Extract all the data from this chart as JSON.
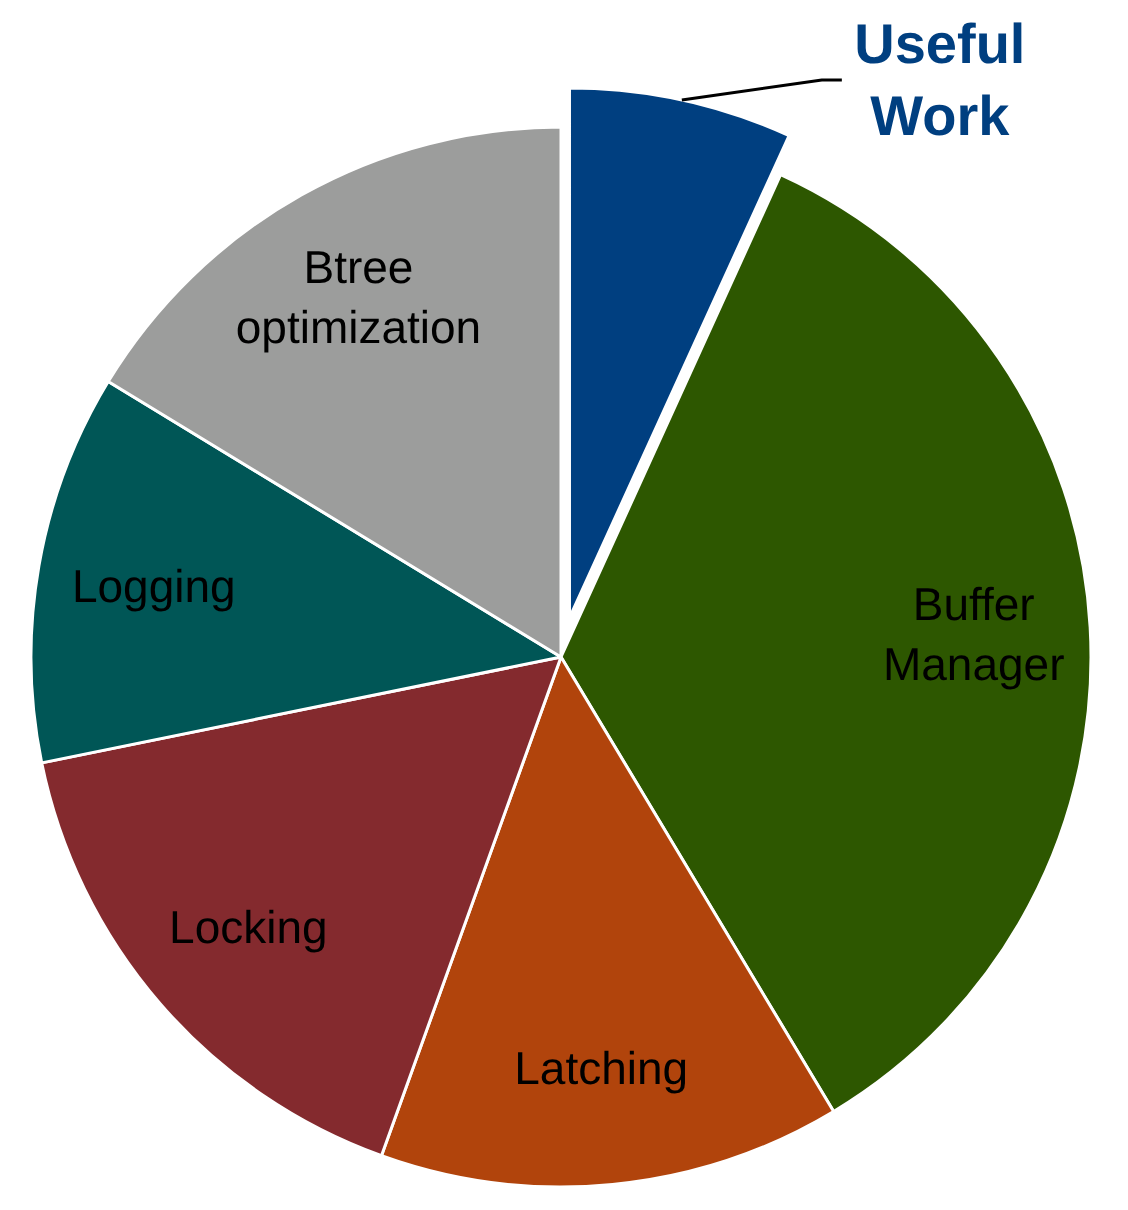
{
  "chart_data": {
    "type": "pie",
    "categories": [
      "Useful Work",
      "Buffer Manager",
      "Latching",
      "Locking",
      "Logging",
      "Btree optimization"
    ],
    "values": [
      6.8,
      34.6,
      14.1,
      16.3,
      11.9,
      16.3
    ],
    "colors": [
      "#003f80",
      "#2d5700",
      "#b1440c",
      "#842a2e",
      "#005656",
      "#9c9d9c"
    ]
  }
}
